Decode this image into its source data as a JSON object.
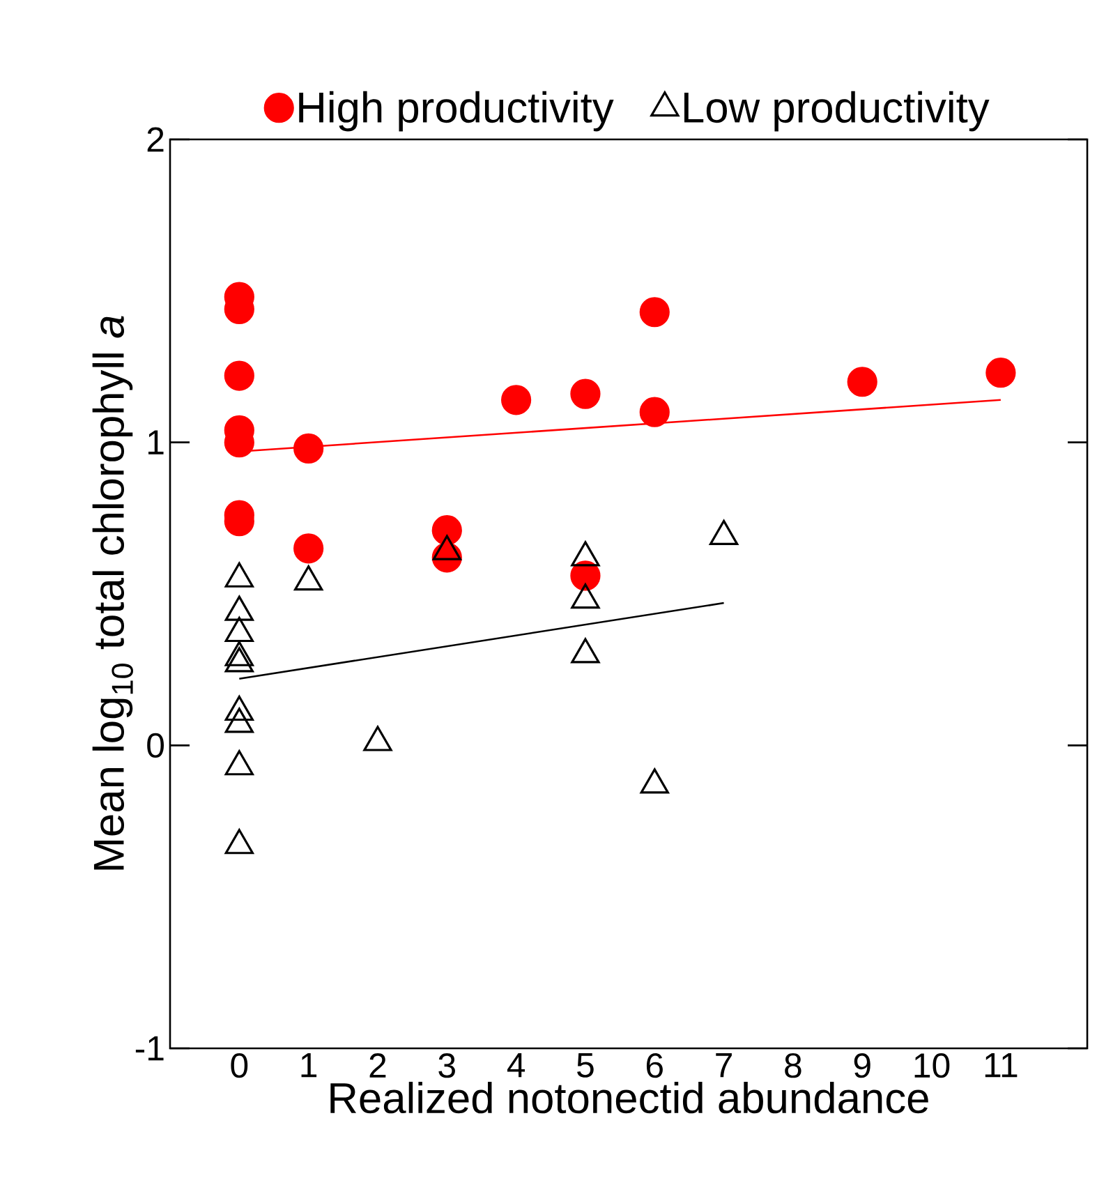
{
  "chart_data": {
    "type": "scatter",
    "xlabel": "Realized notonectid abundance",
    "ylabel": "Mean log$_{10}$ total chlorophyll *a*",
    "xlim": [
      -1,
      12.25
    ],
    "ylim": [
      -1,
      2
    ],
    "xticks": [
      0,
      1,
      2,
      3,
      4,
      5,
      6,
      7,
      8,
      9,
      10,
      11
    ],
    "yticks": [
      {
        "value": -1,
        "label": "-1"
      },
      0,
      1,
      2
    ],
    "legend": "top",
    "grid": false,
    "series": [
      {
        "name": "High productivity",
        "color": "#ff0000",
        "marker": "circle",
        "x": [
          0,
          0,
          0,
          0,
          0,
          0,
          0,
          1,
          1,
          3,
          3,
          4,
          5,
          5,
          6,
          6,
          9,
          11
        ],
        "values": [
          1.48,
          1.44,
          1.22,
          1.04,
          1.0,
          0.76,
          0.74,
          0.98,
          0.65,
          0.71,
          0.62,
          1.14,
          1.16,
          0.56,
          1.43,
          1.1,
          1.2,
          1.23
        ]
      },
      {
        "name": "Low productivity",
        "color": "#000000",
        "marker": "triangle",
        "x": [
          0,
          0,
          0,
          0,
          0,
          0,
          0,
          0,
          0,
          1,
          2,
          3,
          5,
          5,
          5,
          6,
          7
        ],
        "values": [
          0.55,
          0.44,
          0.37,
          0.29,
          0.27,
          0.11,
          0.07,
          -0.07,
          -0.33,
          0.54,
          0.01,
          0.64,
          0.62,
          0.48,
          0.3,
          -0.13,
          0.69
        ]
      },
      {
        "type": "line",
        "color": "#ff0000",
        "marker": "none",
        "x": [
          0,
          11
        ],
        "values": [
          0.97,
          1.14
        ]
      },
      {
        "type": "line",
        "color": "#000000",
        "marker": "none",
        "x": [
          0,
          7
        ],
        "values": [
          0.22,
          0.47
        ]
      }
    ]
  }
}
